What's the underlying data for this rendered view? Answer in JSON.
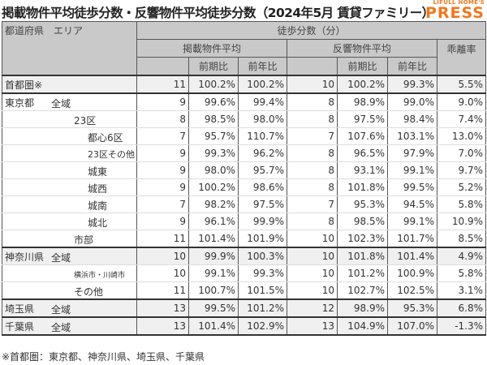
{
  "title": "掲載物件平均徒歩分数・反響物件平均徒歩分数（2024年5月 賃貸ファミリー）",
  "logo": {
    "small": "LIFULL HOME'S",
    "big": "PRESS",
    "color": "#f0781e"
  },
  "header": {
    "area": "都道府県　エリア",
    "main": "徒歩分数（分）",
    "listed": "掲載物件平均",
    "response": "反響物件平均",
    "gap": "乖離率",
    "qoq": "前期比",
    "yoy": "前年比"
  },
  "rows": [
    {
      "pref": "首都圏※",
      "area": "",
      "v": [
        "11",
        "100.2%",
        "100.2%",
        "10",
        "100.2%",
        "99.3%",
        "5.5%"
      ]
    },
    {
      "pref": "東京都",
      "area": "全域",
      "v": [
        "9",
        "99.6%",
        "99.4%",
        "8",
        "98.9%",
        "99.0%",
        "9.0%"
      ]
    },
    {
      "pref": "",
      "area": "23区",
      "v": [
        "8",
        "98.5%",
        "98.0%",
        "8",
        "97.5%",
        "98.4%",
        "7.4%"
      ]
    },
    {
      "pref": "",
      "area": "都心6区",
      "v": [
        "7",
        "95.7%",
        "110.7%",
        "7",
        "107.6%",
        "103.1%",
        "13.0%"
      ]
    },
    {
      "pref": "",
      "area": "23区その他",
      "v": [
        "9",
        "99.3%",
        "96.2%",
        "8",
        "96.5%",
        "97.9%",
        "7.0%"
      ]
    },
    {
      "pref": "",
      "area": "城東",
      "v": [
        "9",
        "98.0%",
        "95.7%",
        "8",
        "93.1%",
        "99.1%",
        "9.7%"
      ]
    },
    {
      "pref": "",
      "area": "城西",
      "v": [
        "9",
        "100.2%",
        "98.6%",
        "8",
        "101.8%",
        "99.5%",
        "5.2%"
      ]
    },
    {
      "pref": "",
      "area": "城南",
      "v": [
        "7",
        "98.2%",
        "97.5%",
        "7",
        "95.3%",
        "94.5%",
        "5.8%"
      ]
    },
    {
      "pref": "",
      "area": "城北",
      "v": [
        "9",
        "96.1%",
        "99.9%",
        "8",
        "98.5%",
        "99.1%",
        "10.9%"
      ]
    },
    {
      "pref": "",
      "area": "市部",
      "v": [
        "11",
        "101.4%",
        "101.9%",
        "10",
        "102.3%",
        "101.7%",
        "8.5%"
      ]
    },
    {
      "pref": "神奈川県",
      "area": "全域",
      "v": [
        "10",
        "99.9%",
        "100.3%",
        "10",
        "101.8%",
        "101.4%",
        "4.9%"
      ]
    },
    {
      "pref": "",
      "area": "横浜市・川崎市",
      "v": [
        "10",
        "99.1%",
        "99.3%",
        "10",
        "101.2%",
        "100.9%",
        "5.8%"
      ]
    },
    {
      "pref": "",
      "area": "その他",
      "v": [
        "11",
        "100.7%",
        "101.5%",
        "10",
        "102.7%",
        "102.5%",
        "3.1%"
      ]
    },
    {
      "pref": "埼玉県",
      "area": "全域",
      "v": [
        "13",
        "99.5%",
        "101.2%",
        "12",
        "98.9%",
        "95.3%",
        "6.8%"
      ]
    },
    {
      "pref": "千葉県",
      "area": "全域",
      "v": [
        "13",
        "101.4%",
        "102.9%",
        "13",
        "104.9%",
        "107.0%",
        "-1.3%"
      ]
    }
  ],
  "note": "※首都圏：東京都、神奈川県、埼玉県、千葉県"
}
